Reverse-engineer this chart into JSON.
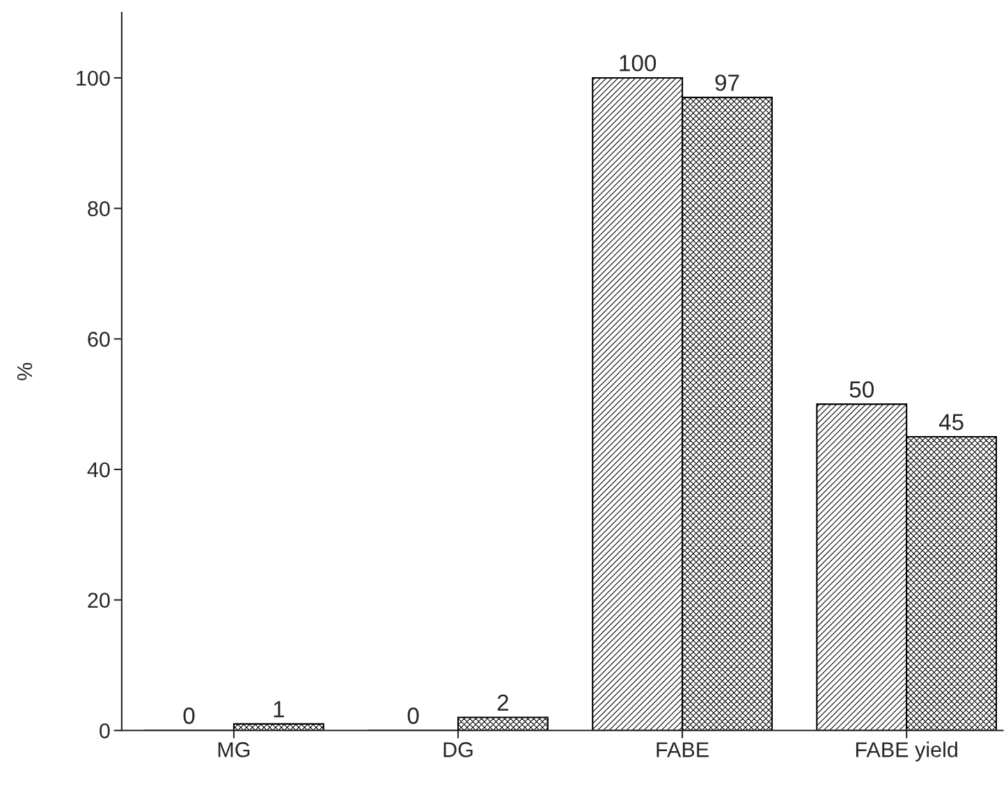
{
  "chart_data": {
    "type": "bar",
    "ylabel": "%",
    "categories": [
      "MG",
      "DG",
      "FABE",
      "FABE yield"
    ],
    "series": [
      {
        "color": "#000000",
        "values": [
          0,
          0,
          100,
          50
        ]
      },
      {
        "color": "#000000",
        "values": [
          1,
          2,
          97,
          45
        ]
      }
    ],
    "ylim": [
      0,
      110
    ],
    "yticks": [
      0,
      20,
      40,
      60,
      80,
      100
    ],
    "data_labels": true
  }
}
